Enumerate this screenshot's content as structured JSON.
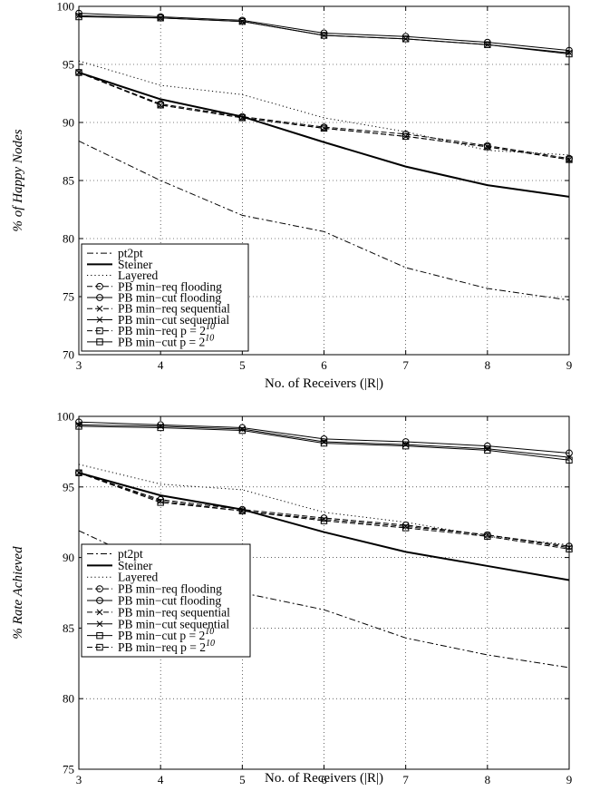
{
  "chart_data": [
    {
      "type": "line",
      "xlabel": "No. of Receivers (|R|)",
      "ylabel": "% of Happy Nodes",
      "x": [
        3,
        4,
        5,
        6,
        7,
        8,
        9
      ],
      "xlim": [
        3,
        9
      ],
      "ylim": [
        70,
        100
      ],
      "xticks": [
        3,
        4,
        5,
        6,
        7,
        8,
        9
      ],
      "yticks": [
        70,
        75,
        80,
        85,
        90,
        95,
        100
      ],
      "grid": true,
      "legend_position": "bottom-left",
      "series": [
        {
          "name": "pt2pt",
          "style": "dashdot",
          "marker": "none",
          "values": [
            88.4,
            85.0,
            82.0,
            80.6,
            77.5,
            75.7,
            74.7
          ]
        },
        {
          "name": "Steiner",
          "style": "thick",
          "marker": "none",
          "values": [
            94.3,
            92.0,
            90.5,
            88.3,
            86.2,
            84.6,
            83.6
          ]
        },
        {
          "name": "Layered",
          "style": "dotted",
          "marker": "none",
          "values": [
            95.3,
            93.2,
            92.4,
            90.4,
            89.2,
            87.6,
            87.2
          ]
        },
        {
          "name": "PB min−req flooding",
          "style": "dashed",
          "marker": "circle",
          "values": [
            94.3,
            91.6,
            90.5,
            89.6,
            89.0,
            88.0,
            86.9
          ]
        },
        {
          "name": "PB min−cut flooding",
          "style": "solid",
          "marker": "circle",
          "values": [
            99.4,
            99.1,
            98.8,
            97.7,
            97.4,
            96.9,
            96.2
          ]
        },
        {
          "name": "PB min−req sequential",
          "style": "dashed",
          "marker": "cross",
          "values": [
            94.3,
            91.5,
            90.4,
            89.5,
            88.8,
            87.9,
            86.8
          ]
        },
        {
          "name": "PB min−cut sequential",
          "style": "solid",
          "marker": "cross",
          "values": [
            99.2,
            99.0,
            98.7,
            97.5,
            97.2,
            96.7,
            96.0
          ]
        },
        {
          "name": "PB min−req  p = 2",
          "superscript": "10",
          "style": "dashed",
          "marker": "square",
          "values": [
            94.3,
            91.5,
            90.4,
            89.5,
            88.8,
            87.9,
            86.8
          ]
        },
        {
          "name": "PB min−cut  p = 2",
          "superscript": "10",
          "style": "solid",
          "marker": "square",
          "values": [
            99.1,
            99.0,
            98.7,
            97.5,
            97.2,
            96.7,
            95.9
          ]
        }
      ]
    },
    {
      "type": "line",
      "xlabel": "No. of Receivers (|R|)",
      "ylabel": "% Rate Achieved",
      "x": [
        3,
        4,
        5,
        6,
        7,
        8,
        9
      ],
      "xlim": [
        3,
        9
      ],
      "ylim": [
        75,
        100
      ],
      "xticks": [
        3,
        4,
        5,
        6,
        7,
        8,
        9
      ],
      "yticks": [
        75,
        80,
        85,
        90,
        95,
        100
      ],
      "grid": true,
      "legend_position": "bottom-left",
      "series": [
        {
          "name": "pt2pt",
          "style": "dashdot",
          "marker": "none",
          "values": [
            91.9,
            89.2,
            87.5,
            86.3,
            84.3,
            83.1,
            82.2
          ]
        },
        {
          "name": "Steiner",
          "style": "thick",
          "marker": "none",
          "values": [
            96.0,
            94.4,
            93.4,
            91.8,
            90.4,
            89.4,
            88.4
          ]
        },
        {
          "name": "Layered",
          "style": "dotted",
          "marker": "none",
          "values": [
            96.6,
            95.2,
            94.8,
            93.2,
            92.5,
            91.5,
            90.9
          ]
        },
        {
          "name": "PB min−req flooding",
          "style": "dashed",
          "marker": "circle",
          "values": [
            96.0,
            94.1,
            93.4,
            92.8,
            92.3,
            91.6,
            90.8
          ]
        },
        {
          "name": "PB min−cut flooding",
          "style": "solid",
          "marker": "circle",
          "values": [
            99.6,
            99.4,
            99.2,
            98.4,
            98.2,
            97.9,
            97.4
          ]
        },
        {
          "name": "PB min−req sequential",
          "style": "dashed",
          "marker": "cross",
          "values": [
            96.0,
            94.0,
            93.3,
            92.7,
            92.2,
            91.6,
            90.7
          ]
        },
        {
          "name": "PB min−cut sequential",
          "style": "solid",
          "marker": "cross",
          "values": [
            99.4,
            99.3,
            99.1,
            98.2,
            98.0,
            97.7,
            97.1
          ]
        },
        {
          "name": "PB min−cut  p = 2",
          "superscript": "10",
          "style": "solid",
          "marker": "square",
          "values": [
            99.3,
            99.2,
            99.0,
            98.1,
            97.9,
            97.6,
            96.9
          ]
        },
        {
          "name": "PB min−req  p = 2",
          "superscript": "10",
          "style": "dashed",
          "marker": "square",
          "values": [
            96.0,
            93.9,
            93.3,
            92.6,
            92.1,
            91.5,
            90.6
          ]
        }
      ]
    }
  ]
}
